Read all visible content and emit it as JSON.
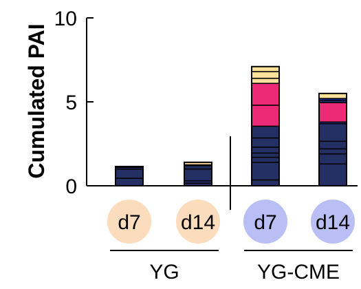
{
  "chart_data": {
    "type": "bar",
    "stacked": true,
    "ylabel": "Cumulated PAI",
    "xlabel": "",
    "ylim": [
      0,
      10
    ],
    "yticks": [
      "0",
      "5",
      "10"
    ],
    "grid": false,
    "categories": [
      "d7",
      "d14",
      "d7",
      "d14"
    ],
    "category_badge_colors": [
      "#fbdcbc",
      "#fbdcbc",
      "#b9bff5",
      "#b9bff5"
    ],
    "groups": [
      {
        "label": "YG",
        "categories": [
          0,
          1
        ]
      },
      {
        "label": "YG-CME",
        "categories": [
          2,
          3
        ]
      }
    ],
    "bars": [
      {
        "total": 1.15,
        "segments": [
          {
            "value": 0.45,
            "color": "#243063"
          },
          {
            "value": 0.55,
            "color": "#243063"
          },
          {
            "value": 0.1,
            "color": "#243063"
          },
          {
            "value": 0.05,
            "color": "#1a35c9"
          }
        ]
      },
      {
        "total": 1.4,
        "segments": [
          {
            "value": 0.15,
            "color": "#243063"
          },
          {
            "value": 0.15,
            "color": "#243063"
          },
          {
            "value": 0.7,
            "color": "#243063"
          },
          {
            "value": 0.2,
            "color": "#243063"
          },
          {
            "value": 0.05,
            "color": "#1a35c9"
          },
          {
            "value": 0.15,
            "color": "#fbe09a"
          }
        ]
      },
      {
        "total": 7.1,
        "segments": [
          {
            "value": 0.35,
            "color": "#243063"
          },
          {
            "value": 1.05,
            "color": "#243063"
          },
          {
            "value": 0.3,
            "color": "#243063"
          },
          {
            "value": 0.25,
            "color": "#243063"
          },
          {
            "value": 0.35,
            "color": "#243063"
          },
          {
            "value": 0.55,
            "color": "#243063"
          },
          {
            "value": 0.7,
            "color": "#243063"
          },
          {
            "value": 1.25,
            "color": "#ec2a75"
          },
          {
            "value": 1.3,
            "color": "#ec2a75"
          },
          {
            "value": 0.3,
            "color": "#fbe09a"
          },
          {
            "value": 0.4,
            "color": "#fbe09a"
          },
          {
            "value": 0.3,
            "color": "#fbe09a"
          }
        ]
      },
      {
        "total": 5.5,
        "segments": [
          {
            "value": 1.3,
            "color": "#243063"
          },
          {
            "value": 0.6,
            "color": "#243063"
          },
          {
            "value": 0.3,
            "color": "#243063"
          },
          {
            "value": 0.45,
            "color": "#243063"
          },
          {
            "value": 1.05,
            "color": "#243063"
          },
          {
            "value": 0.1,
            "color": "#243063"
          },
          {
            "value": 1.15,
            "color": "#ec2a75"
          },
          {
            "value": 0.15,
            "color": "#243063"
          },
          {
            "value": 0.1,
            "color": "#1a35c9"
          },
          {
            "value": 0.3,
            "color": "#fbe09a"
          }
        ]
      }
    ]
  }
}
